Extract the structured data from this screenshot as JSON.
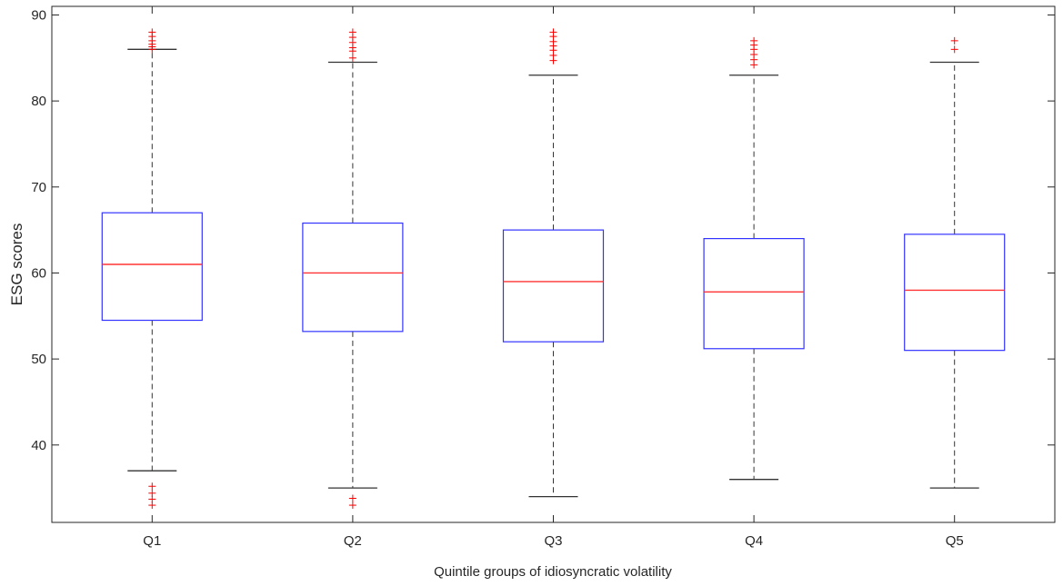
{
  "chart_data": {
    "type": "box",
    "title": "",
    "xlabel": "Quintile groups of idiosyncratic volatility",
    "ylabel": "ESG scores",
    "ylim": [
      31,
      91
    ],
    "yticks": [
      40,
      50,
      60,
      70,
      80,
      90
    ],
    "grid": false,
    "categories": [
      "Q1",
      "Q2",
      "Q3",
      "Q4",
      "Q5"
    ],
    "boxes": [
      {
        "category": "Q1",
        "whisker_low": 37,
        "q1": 54.5,
        "median": 61,
        "q3": 67,
        "whisker_high": 86,
        "outliers": [
          86,
          86.3,
          86.6,
          87,
          87.5,
          88,
          33,
          33.7,
          34.4,
          35.2
        ]
      },
      {
        "category": "Q2",
        "whisker_low": 35,
        "q1": 53.2,
        "median": 60,
        "q3": 65.8,
        "whisker_high": 84.5,
        "outliers": [
          85,
          85.8,
          86.2,
          86.8,
          87.4,
          88,
          33,
          33.8
        ]
      },
      {
        "category": "Q3",
        "whisker_low": 34,
        "q1": 52,
        "median": 59,
        "q3": 65,
        "whisker_high": 83,
        "outliers": [
          84.7,
          85.3,
          85.9,
          86.4,
          86.9,
          87.5,
          88
        ]
      },
      {
        "category": "Q4",
        "whisker_low": 36,
        "q1": 51.2,
        "median": 57.8,
        "q3": 64,
        "whisker_high": 83,
        "outliers": [
          84.2,
          84.8,
          85.4,
          86,
          86.5,
          87
        ]
      },
      {
        "category": "Q5",
        "whisker_low": 35,
        "q1": 51,
        "median": 58,
        "q3": 64.5,
        "whisker_high": 84.5,
        "outliers": [
          86,
          87
        ]
      }
    ],
    "colors": {
      "box": "#3333ff",
      "median": "#ff3333",
      "whisker": "#333333",
      "outlier": "#ff0000",
      "axis": "#262626"
    }
  }
}
